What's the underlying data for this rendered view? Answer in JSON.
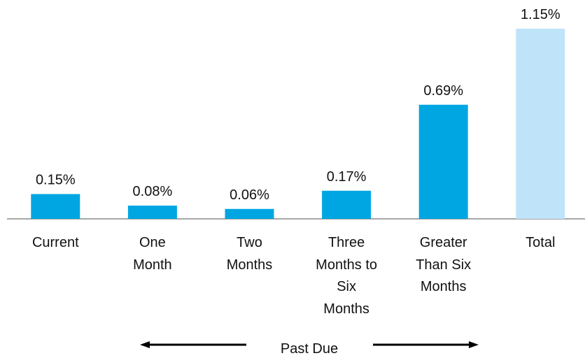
{
  "chart_data": {
    "type": "bar",
    "categories": [
      "Current",
      "One Month",
      "Two Months",
      "Three Months to Six Months",
      "Greater Than Six Months",
      "Total"
    ],
    "values": [
      0.15,
      0.08,
      0.06,
      0.17,
      0.69,
      1.15
    ],
    "value_labels": [
      "0.15%",
      "0.08%",
      "0.06%",
      "0.17%",
      "0.69%",
      "1.15%"
    ],
    "colors": [
      "#00a6e2",
      "#00a6e2",
      "#00a6e2",
      "#00a6e2",
      "#00a6e2",
      "#bfe4fa"
    ],
    "annotation": "Past Due"
  }
}
